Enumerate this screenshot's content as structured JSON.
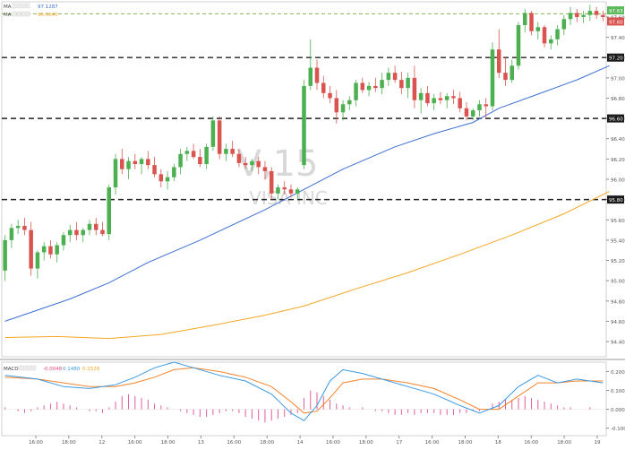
{
  "watermark": {
    "symbol": "V,15",
    "name": "VISA INC"
  },
  "legend": [
    {
      "label": "MA",
      "value": "97.1287",
      "color": "#3b6fd1"
    },
    {
      "label": "MA",
      "value": "96.0640",
      "color": "#f5a623"
    }
  ],
  "macd_legend": {
    "label": "MACD",
    "values": [
      "-0.0048",
      "0.1480",
      "0.1526"
    ],
    "colors": [
      "#e0457b",
      "#3b9ae1",
      "#f5a623"
    ]
  },
  "colors": {
    "up": "#4caf50",
    "down": "#d9534f",
    "ma_fast": "#3b6fd1",
    "ma_slow": "#f5a623",
    "macd_line": "#3b9ae1",
    "signal_line": "#f5832b",
    "hist": "#e05c9a",
    "level": "#222222",
    "price_line": "#7cb342"
  },
  "chart_data": [
    {
      "type": "candlestick",
      "title": "V,15",
      "subtitle": "VISA INC",
      "x_ticks": [
        "16:00",
        "18:00",
        "12",
        "16:00",
        "18:00",
        "13",
        "16:00",
        "18:00",
        "14",
        "16:00",
        "18:00",
        "17",
        "16:00",
        "18:00",
        "18",
        "16:00",
        "18:00",
        "19"
      ],
      "y_ticks": [
        "97.60",
        "97.40",
        "97.20",
        "97.00",
        "96.80",
        "96.60",
        "96.40",
        "96.20",
        "96.00",
        "95.80",
        "95.60",
        "95.40",
        "95.20",
        "95.00",
        "94.80",
        "94.60",
        "94.40"
      ],
      "ylim": [
        94.25,
        97.75
      ],
      "levels": [
        97.2,
        96.6,
        95.8
      ],
      "level_labels": [
        "97.20",
        "96.60",
        "95.80"
      ],
      "price_tags": [
        {
          "label": "97.63",
          "value": 97.63,
          "color": "#5cb85c"
        },
        {
          "label": "97.60",
          "value": 97.6,
          "color": "#d9534f"
        }
      ],
      "candles": [
        [
          95.1,
          95.45,
          95.0,
          95.4
        ],
        [
          95.4,
          95.56,
          95.32,
          95.52
        ],
        [
          95.52,
          95.6,
          95.46,
          95.54
        ],
        [
          95.54,
          95.62,
          95.45,
          95.5
        ],
        [
          95.5,
          95.58,
          95.05,
          95.12
        ],
        [
          95.12,
          95.3,
          95.02,
          95.28
        ],
        [
          95.28,
          95.38,
          95.2,
          95.34
        ],
        [
          95.34,
          95.4,
          95.22,
          95.26
        ],
        [
          95.26,
          95.38,
          95.18,
          95.35
        ],
        [
          95.35,
          95.48,
          95.3,
          95.45
        ],
        [
          95.45,
          95.55,
          95.38,
          95.5
        ],
        [
          95.5,
          95.58,
          95.4,
          95.45
        ],
        [
          95.45,
          95.52,
          95.38,
          95.5
        ],
        [
          95.5,
          95.6,
          95.45,
          95.56
        ],
        [
          95.56,
          95.62,
          95.45,
          95.5
        ],
        [
          95.5,
          95.58,
          95.44,
          95.46
        ],
        [
          95.46,
          95.95,
          95.4,
          95.92
        ],
        [
          95.92,
          96.25,
          95.85,
          96.2
        ],
        [
          96.2,
          96.3,
          96.05,
          96.1
        ],
        [
          96.1,
          96.22,
          96.0,
          96.18
        ],
        [
          96.18,
          96.25,
          96.1,
          96.15
        ],
        [
          96.15,
          96.22,
          96.05,
          96.2
        ],
        [
          96.2,
          96.28,
          96.1,
          96.14
        ],
        [
          96.14,
          96.22,
          96.02,
          96.05
        ],
        [
          96.05,
          96.1,
          95.92,
          95.98
        ],
        [
          95.98,
          96.08,
          95.9,
          96.02
        ],
        [
          96.02,
          96.15,
          95.98,
          96.12
        ],
        [
          96.12,
          96.3,
          96.05,
          96.25
        ],
        [
          96.25,
          96.32,
          96.18,
          96.28
        ],
        [
          96.28,
          96.35,
          96.2,
          96.22
        ],
        [
          96.22,
          96.3,
          96.12,
          96.15
        ],
        [
          96.15,
          96.35,
          96.1,
          96.32
        ],
        [
          96.32,
          96.62,
          96.28,
          96.58
        ],
        [
          96.58,
          96.62,
          96.2,
          96.25
        ],
        [
          96.25,
          96.35,
          96.18,
          96.3
        ],
        [
          96.3,
          96.38,
          96.22,
          96.25
        ],
        [
          96.25,
          96.3,
          96.12,
          96.16
        ],
        [
          96.16,
          96.22,
          96.1,
          96.14
        ],
        [
          96.14,
          96.2,
          96.08,
          96.18
        ],
        [
          96.18,
          96.22,
          96.05,
          96.12
        ],
        [
          96.12,
          96.18,
          96.0,
          96.08
        ],
        [
          96.08,
          96.12,
          95.8,
          95.86
        ],
        [
          95.86,
          95.95,
          95.8,
          95.92
        ],
        [
          95.92,
          95.98,
          95.85,
          95.9
        ],
        [
          95.9,
          95.95,
          95.82,
          95.86
        ],
        [
          95.86,
          95.92,
          95.8,
          95.9
        ],
        [
          96.14,
          96.98,
          96.1,
          96.92
        ],
        [
          96.92,
          97.38,
          96.88,
          97.1
        ],
        [
          97.1,
          97.18,
          96.88,
          96.95
        ],
        [
          96.95,
          97.02,
          96.8,
          96.85
        ],
        [
          96.85,
          96.92,
          96.75,
          96.8
        ],
        [
          96.8,
          96.88,
          96.55,
          96.66
        ],
        [
          96.66,
          96.78,
          96.58,
          96.74
        ],
        [
          96.74,
          96.82,
          96.68,
          96.78
        ],
        [
          96.78,
          96.98,
          96.72,
          96.95
        ],
        [
          96.95,
          97.0,
          96.85,
          96.88
        ],
        [
          96.88,
          96.96,
          96.82,
          96.92
        ],
        [
          96.92,
          97.0,
          96.86,
          96.9
        ],
        [
          96.9,
          97.05,
          96.84,
          96.98
        ],
        [
          96.98,
          97.1,
          96.92,
          97.05
        ],
        [
          97.05,
          97.12,
          96.95,
          96.98
        ],
        [
          96.98,
          97.06,
          96.84,
          96.9
        ],
        [
          96.9,
          97.05,
          96.8,
          97.0
        ],
        [
          97.0,
          97.12,
          96.7,
          96.78
        ],
        [
          96.78,
          96.9,
          96.65,
          96.85
        ],
        [
          96.85,
          96.92,
          96.72,
          96.75
        ],
        [
          96.75,
          96.84,
          96.68,
          96.8
        ],
        [
          96.8,
          96.86,
          96.74,
          96.78
        ],
        [
          96.78,
          96.85,
          96.7,
          96.82
        ],
        [
          96.82,
          96.88,
          96.74,
          96.8
        ],
        [
          96.8,
          96.86,
          96.66,
          96.7
        ],
        [
          96.7,
          96.76,
          96.58,
          96.62
        ],
        [
          96.62,
          96.7,
          96.58,
          96.68
        ],
        [
          96.68,
          96.78,
          96.62,
          96.74
        ],
        [
          96.74,
          96.8,
          96.6,
          96.72
        ],
        [
          96.72,
          97.35,
          96.68,
          97.28
        ],
        [
          97.28,
          97.48,
          97.0,
          97.05
        ],
        [
          97.05,
          97.2,
          96.92,
          96.98
        ],
        [
          96.98,
          97.18,
          96.95,
          97.12
        ],
        [
          97.12,
          97.55,
          97.08,
          97.52
        ],
        [
          97.52,
          97.68,
          97.45,
          97.64
        ],
        [
          97.64,
          97.66,
          97.42,
          97.46
        ],
        [
          97.46,
          97.55,
          97.38,
          97.5
        ],
        [
          97.5,
          97.52,
          97.3,
          97.34
        ],
        [
          97.34,
          97.42,
          97.28,
          97.38
        ],
        [
          97.38,
          97.52,
          97.32,
          97.48
        ],
        [
          97.48,
          97.62,
          97.42,
          97.58
        ],
        [
          97.58,
          97.7,
          97.52,
          97.64
        ],
        [
          97.64,
          97.68,
          97.55,
          97.6
        ],
        [
          97.6,
          97.66,
          97.54,
          97.62
        ],
        [
          97.62,
          97.72,
          97.56,
          97.66
        ],
        [
          97.66,
          97.7,
          97.58,
          97.62
        ],
        [
          97.62,
          97.66,
          97.56,
          97.6
        ]
      ],
      "ma_fast": [
        [
          0,
          94.6
        ],
        [
          10,
          94.82
        ],
        [
          16,
          94.98
        ],
        [
          22,
          95.18
        ],
        [
          30,
          95.4
        ],
        [
          40,
          95.7
        ],
        [
          46,
          95.9
        ],
        [
          52,
          96.1
        ],
        [
          60,
          96.32
        ],
        [
          66,
          96.45
        ],
        [
          72,
          96.56
        ],
        [
          76,
          96.7
        ],
        [
          82,
          96.84
        ],
        [
          88,
          96.98
        ],
        [
          93,
          97.12
        ]
      ],
      "ma_slow": [
        [
          0,
          94.44
        ],
        [
          8,
          94.45
        ],
        [
          16,
          94.43
        ],
        [
          24,
          94.47
        ],
        [
          32,
          94.56
        ],
        [
          40,
          94.66
        ],
        [
          46,
          94.75
        ],
        [
          54,
          94.92
        ],
        [
          62,
          95.08
        ],
        [
          70,
          95.26
        ],
        [
          78,
          95.45
        ],
        [
          86,
          95.66
        ],
        [
          93,
          95.88
        ]
      ]
    },
    {
      "type": "line",
      "title": "MACD",
      "y_ticks": [
        "0.2000",
        "0.1000",
        "0.0000",
        "-0.1000"
      ],
      "ylim": [
        -0.14,
        0.25
      ],
      "macd_line": [
        [
          0,
          0.18
        ],
        [
          5,
          0.16
        ],
        [
          9,
          0.12
        ],
        [
          13,
          0.11
        ],
        [
          17,
          0.13
        ],
        [
          20,
          0.17
        ],
        [
          23,
          0.22
        ],
        [
          26,
          0.25
        ],
        [
          29,
          0.22
        ],
        [
          33,
          0.18
        ],
        [
          37,
          0.15
        ],
        [
          41,
          0.08
        ],
        [
          44,
          -0.02
        ],
        [
          46,
          -0.06
        ],
        [
          48,
          0.02
        ],
        [
          50,
          0.15
        ],
        [
          52,
          0.21
        ],
        [
          55,
          0.19
        ],
        [
          58,
          0.16
        ],
        [
          62,
          0.12
        ],
        [
          66,
          0.08
        ],
        [
          70,
          0.02
        ],
        [
          73,
          -0.02
        ],
        [
          76,
          0.02
        ],
        [
          79,
          0.12
        ],
        [
          82,
          0.18
        ],
        [
          85,
          0.14
        ],
        [
          88,
          0.16
        ],
        [
          92,
          0.14
        ]
      ],
      "signal_line": [
        [
          0,
          0.17
        ],
        [
          5,
          0.16
        ],
        [
          9,
          0.14
        ],
        [
          13,
          0.12
        ],
        [
          17,
          0.12
        ],
        [
          20,
          0.14
        ],
        [
          23,
          0.17
        ],
        [
          26,
          0.21
        ],
        [
          29,
          0.22
        ],
        [
          33,
          0.2
        ],
        [
          37,
          0.17
        ],
        [
          41,
          0.12
        ],
        [
          44,
          0.04
        ],
        [
          46,
          -0.02
        ],
        [
          48,
          -0.01
        ],
        [
          50,
          0.06
        ],
        [
          52,
          0.14
        ],
        [
          55,
          0.16
        ],
        [
          58,
          0.16
        ],
        [
          62,
          0.14
        ],
        [
          66,
          0.11
        ],
        [
          70,
          0.05
        ],
        [
          73,
          0.0
        ],
        [
          76,
          0.0
        ],
        [
          79,
          0.07
        ],
        [
          82,
          0.14
        ],
        [
          85,
          0.14
        ],
        [
          88,
          0.15
        ],
        [
          92,
          0.15
        ]
      ],
      "histogram": [
        0.01,
        0.0,
        -0.01,
        -0.02,
        -0.01,
        0.01,
        0.02,
        0.03,
        0.04,
        0.03,
        0.02,
        0.01,
        0.0,
        -0.01,
        -0.01,
        -0.02,
        0.01,
        0.04,
        0.07,
        0.08,
        0.07,
        0.06,
        0.05,
        0.03,
        0.02,
        0.01,
        0.0,
        -0.01,
        -0.02,
        -0.03,
        -0.04,
        -0.04,
        -0.03,
        -0.02,
        -0.01,
        -0.01,
        -0.02,
        -0.04,
        -0.05,
        -0.06,
        -0.07,
        -0.06,
        -0.05,
        -0.04,
        -0.03,
        -0.02,
        0.06,
        0.1,
        0.09,
        0.07,
        0.05,
        0.03,
        0.02,
        0.01,
        0.0,
        0.01,
        0.0,
        -0.01,
        -0.01,
        -0.02,
        -0.03,
        -0.03,
        -0.02,
        -0.03,
        -0.02,
        -0.02,
        -0.02,
        -0.03,
        -0.03,
        -0.03,
        -0.02,
        -0.02,
        -0.01,
        -0.01,
        0.0,
        0.03,
        0.04,
        0.05,
        0.05,
        0.06,
        0.07,
        0.06,
        0.05,
        0.04,
        0.03,
        0.02,
        0.01,
        0.01,
        0.0,
        0.0,
        0.01,
        0.0,
        0.0
      ]
    }
  ]
}
